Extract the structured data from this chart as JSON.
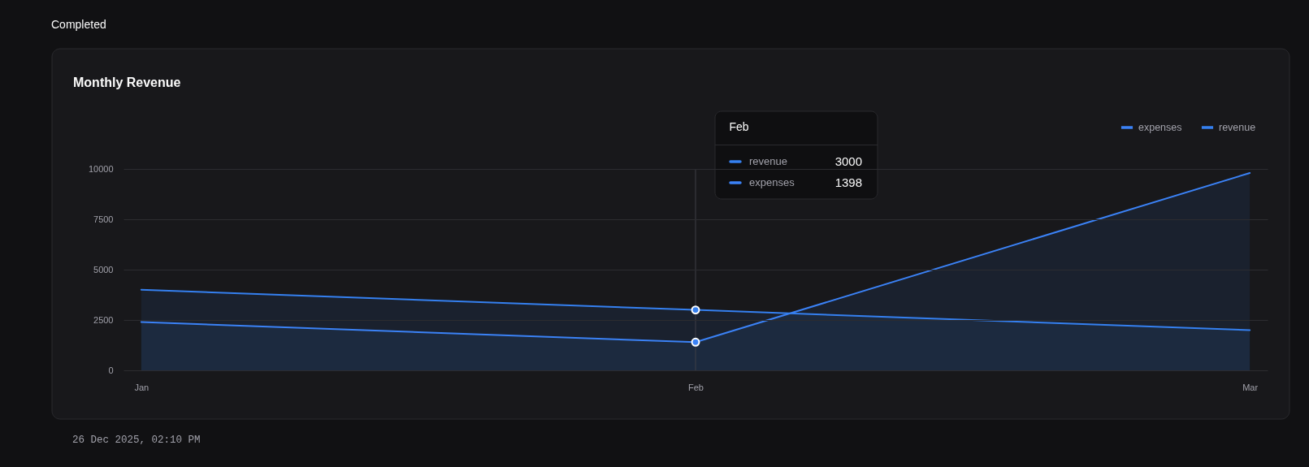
{
  "chart_data": {
    "type": "area",
    "title": "Monthly Revenue",
    "categories": [
      "Jan",
      "Feb",
      "Mar"
    ],
    "series": [
      {
        "name": "expenses",
        "color": "#3b82f6",
        "values": [
          2400,
          1398,
          9800
        ]
      },
      {
        "name": "revenue",
        "color": "#3580f0",
        "values": [
          4000,
          3000,
          2000
        ]
      }
    ],
    "ylim": [
      0,
      10000
    ],
    "yticks": [
      0,
      2500,
      5000,
      7500,
      10000
    ],
    "grid": "y",
    "legend": "top right",
    "line_style": "solid",
    "ref_lines": [
      {
        "axis": "x",
        "value": "Feb",
        "color": "#3f3f46"
      }
    ],
    "annotations": [
      "Completed",
      "3000",
      "1398",
      "26 Dec 2025, 02:10 PM"
    ]
  }
}
